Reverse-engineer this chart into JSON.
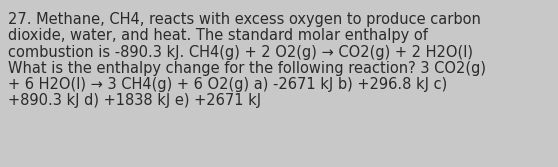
{
  "background_color": "#c8c8c8",
  "text_color": "#2b2b2b",
  "font_size": 10.5,
  "text_lines": [
    "27. Methane, CH4, reacts with excess oxygen to produce carbon",
    "dioxide, water, and heat. The standard molar enthalpy of",
    "combustion is -890.3 kJ. CH4(g) + 2 O2(g) → CO2(g) + 2 H2O(l)",
    "What is the enthalpy change for the following reaction? 3 CO2(g)",
    "+ 6 H2O(l) → 3 CH4(g) + 6 O2(g) a) -2671 kJ b) +296.8 kJ c)",
    "+890.3 kJ d) +1838 kJ e) +2671 kJ"
  ],
  "figsize": [
    5.58,
    1.67
  ],
  "dpi": 100
}
